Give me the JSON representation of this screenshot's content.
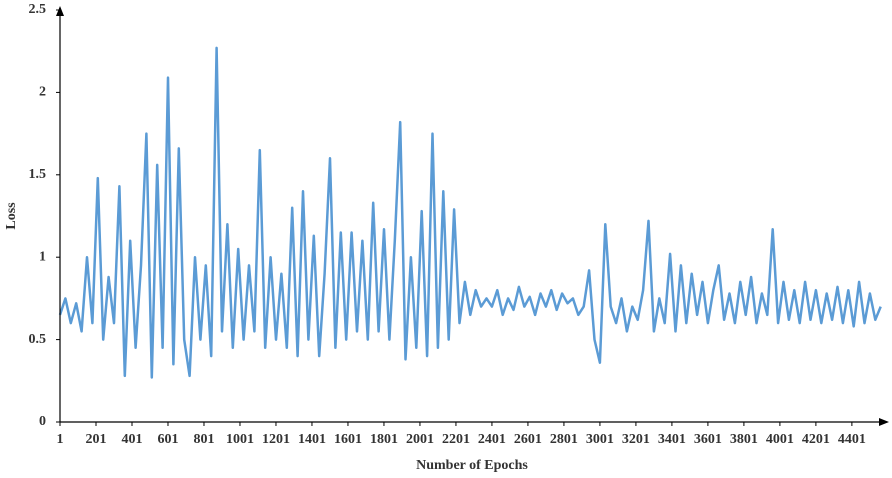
{
  "chart_data": {
    "type": "line",
    "x_label": "Number of Epochs",
    "y_label": "Loss",
    "color": "#5b9bd5",
    "x": [
      1,
      31,
      61,
      91,
      121,
      151,
      181,
      211,
      241,
      271,
      301,
      331,
      361,
      391,
      421,
      451,
      481,
      511,
      541,
      571,
      601,
      631,
      661,
      691,
      721,
      751,
      781,
      811,
      841,
      871,
      901,
      931,
      961,
      991,
      1021,
      1051,
      1081,
      1111,
      1141,
      1171,
      1201,
      1231,
      1261,
      1291,
      1321,
      1351,
      1381,
      1411,
      1441,
      1471,
      1501,
      1531,
      1561,
      1591,
      1621,
      1651,
      1681,
      1711,
      1741,
      1771,
      1801,
      1831,
      1861,
      1891,
      1921,
      1951,
      1981,
      2011,
      2041,
      2071,
      2101,
      2131,
      2161,
      2191,
      2221,
      2251,
      2281,
      2311,
      2341,
      2371,
      2401,
      2431,
      2461,
      2491,
      2521,
      2551,
      2581,
      2611,
      2641,
      2671,
      2701,
      2731,
      2761,
      2791,
      2821,
      2851,
      2881,
      2911,
      2941,
      2971,
      3001,
      3031,
      3061,
      3091,
      3121,
      3151,
      3181,
      3211,
      3241,
      3271,
      3301,
      3331,
      3361,
      3391,
      3421,
      3451,
      3481,
      3511,
      3541,
      3571,
      3601,
      3631,
      3661,
      3691,
      3721,
      3751,
      3781,
      3811,
      3841,
      3871,
      3901,
      3931,
      3961,
      3991,
      4021,
      4051,
      4081,
      4111,
      4141,
      4171,
      4201,
      4231,
      4261,
      4291,
      4321,
      4351,
      4381,
      4411,
      4441,
      4471,
      4501,
      4531,
      4561
    ],
    "values": [
      0.65,
      0.75,
      0.6,
      0.72,
      0.55,
      1.0,
      0.6,
      1.48,
      0.5,
      0.88,
      0.6,
      1.43,
      0.28,
      1.1,
      0.45,
      0.95,
      1.75,
      0.27,
      1.56,
      0.45,
      2.09,
      0.35,
      1.66,
      0.5,
      0.28,
      1.0,
      0.5,
      0.95,
      0.4,
      2.27,
      0.55,
      1.2,
      0.45,
      1.05,
      0.5,
      0.95,
      0.55,
      1.65,
      0.45,
      1.0,
      0.5,
      0.9,
      0.45,
      1.3,
      0.4,
      1.4,
      0.5,
      1.13,
      0.4,
      0.9,
      1.6,
      0.45,
      1.15,
      0.5,
      1.15,
      0.55,
      1.1,
      0.5,
      1.33,
      0.55,
      1.17,
      0.5,
      1.1,
      1.82,
      0.38,
      1.0,
      0.45,
      1.28,
      0.4,
      1.75,
      0.45,
      1.4,
      0.5,
      1.29,
      0.6,
      0.85,
      0.65,
      0.8,
      0.7,
      0.75,
      0.7,
      0.8,
      0.65,
      0.75,
      0.68,
      0.82,
      0.7,
      0.76,
      0.65,
      0.78,
      0.7,
      0.8,
      0.68,
      0.78,
      0.72,
      0.75,
      0.65,
      0.7,
      0.92,
      0.5,
      0.36,
      1.2,
      0.7,
      0.6,
      0.75,
      0.55,
      0.7,
      0.62,
      0.8,
      1.22,
      0.55,
      0.75,
      0.6,
      1.02,
      0.55,
      0.95,
      0.6,
      0.9,
      0.65,
      0.85,
      0.6,
      0.8,
      0.95,
      0.62,
      0.78,
      0.6,
      0.85,
      0.65,
      0.88,
      0.6,
      0.78,
      0.65,
      1.17,
      0.6,
      0.85,
      0.62,
      0.8,
      0.6,
      0.85,
      0.62,
      0.8,
      0.6,
      0.78,
      0.62,
      0.82,
      0.6,
      0.8,
      0.58,
      0.85,
      0.6,
      0.78,
      0.62,
      0.7
    ],
    "xlim": [
      1,
      4585
    ],
    "ylim": [
      0,
      2.5
    ],
    "xticks": [
      1,
      201,
      401,
      601,
      801,
      1001,
      1201,
      1401,
      1601,
      1801,
      2001,
      2201,
      2401,
      2601,
      2801,
      3001,
      3201,
      3401,
      3601,
      3801,
      4001,
      4201,
      4401
    ],
    "yticks": [
      0,
      0.5,
      1,
      1.5,
      2,
      2.5
    ]
  }
}
